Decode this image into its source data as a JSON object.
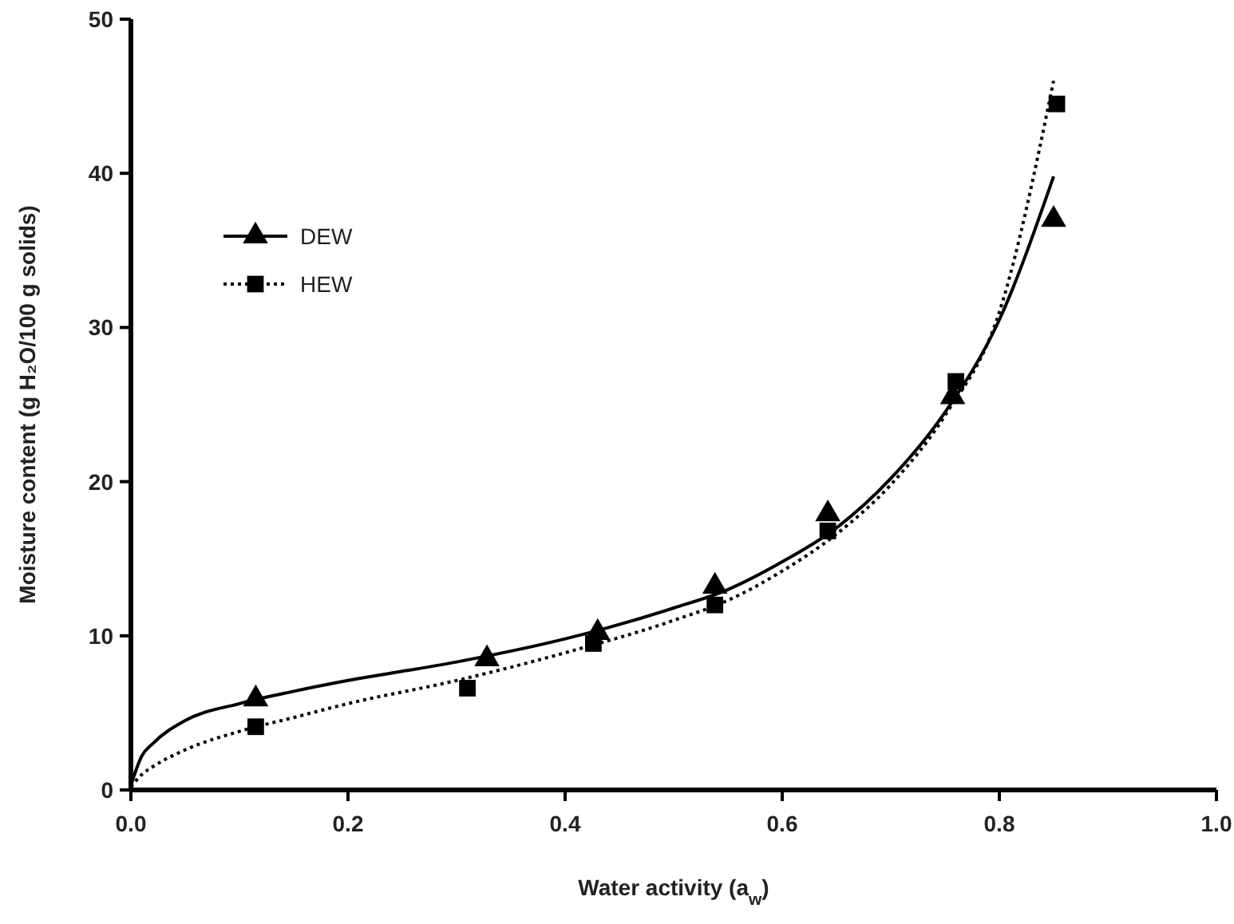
{
  "chart_data": {
    "type": "scatter",
    "xlabel": "Water activity (a$_{w}$)",
    "ylabel": "Moisture content (g H₂O/100 g solids)",
    "xlim": [
      0,
      1
    ],
    "ylim": [
      0,
      50
    ],
    "xticks": [
      {
        "value": 0,
        "label": "0.0"
      },
      {
        "value": 0.2,
        "label": "0.2"
      },
      {
        "value": 0.4,
        "label": "0.4"
      },
      {
        "value": 0.6,
        "label": "0.6"
      },
      {
        "value": 0.8,
        "label": "0.8"
      },
      {
        "value": 1,
        "label": "1.0"
      }
    ],
    "yticks": [
      0,
      10,
      20,
      30,
      40,
      50
    ],
    "grid": false,
    "legend": "top left",
    "series": [
      {
        "name": "DEW",
        "marker": "triangle",
        "line_style": "solid",
        "color": "#000000",
        "x": [
          0.115,
          0.328,
          0.43,
          0.538,
          0.642,
          0.757,
          0.85
        ],
        "values": [
          5.9,
          8.5,
          10.2,
          13.2,
          17.9,
          25.5,
          37
        ]
      },
      {
        "name": "HEW",
        "marker": "square",
        "line_style": "dotted",
        "color": "#000000",
        "x": [
          0.115,
          0.31,
          0.426,
          0.538,
          0.642,
          0.76,
          0.853
        ],
        "values": [
          4.1,
          6.6,
          9.5,
          12,
          16.8,
          26.5,
          44.5
        ]
      },
      {
        "type": "line",
        "marker": "none",
        "line_style": "solid",
        "color": "#000000",
        "x": [
          0,
          0.01,
          0.02,
          0.05,
          0.1,
          0.15,
          0.2,
          0.3,
          0.4,
          0.5,
          0.55,
          0.6,
          0.65,
          0.7,
          0.75,
          0.8,
          0.85
        ],
        "values": [
          0.3,
          2.2,
          3,
          4.5,
          5.6,
          6.4,
          7.1,
          8.3,
          9.8,
          11.8,
          13,
          14.8,
          17,
          20.2,
          24.5,
          30.5,
          39.8
        ]
      },
      {
        "type": "line",
        "marker": "none",
        "line_style": "dotted",
        "color": "#000000",
        "x": [
          0,
          0.01,
          0.02,
          0.05,
          0.1,
          0.15,
          0.2,
          0.3,
          0.4,
          0.5,
          0.55,
          0.6,
          0.65,
          0.7,
          0.75,
          0.8,
          0.85
        ],
        "values": [
          0.2,
          1,
          1.5,
          2.6,
          3.8,
          4.7,
          5.6,
          7.1,
          8.9,
          11,
          12.3,
          14.2,
          16.6,
          19.8,
          24.3,
          31,
          46
        ]
      }
    ]
  }
}
